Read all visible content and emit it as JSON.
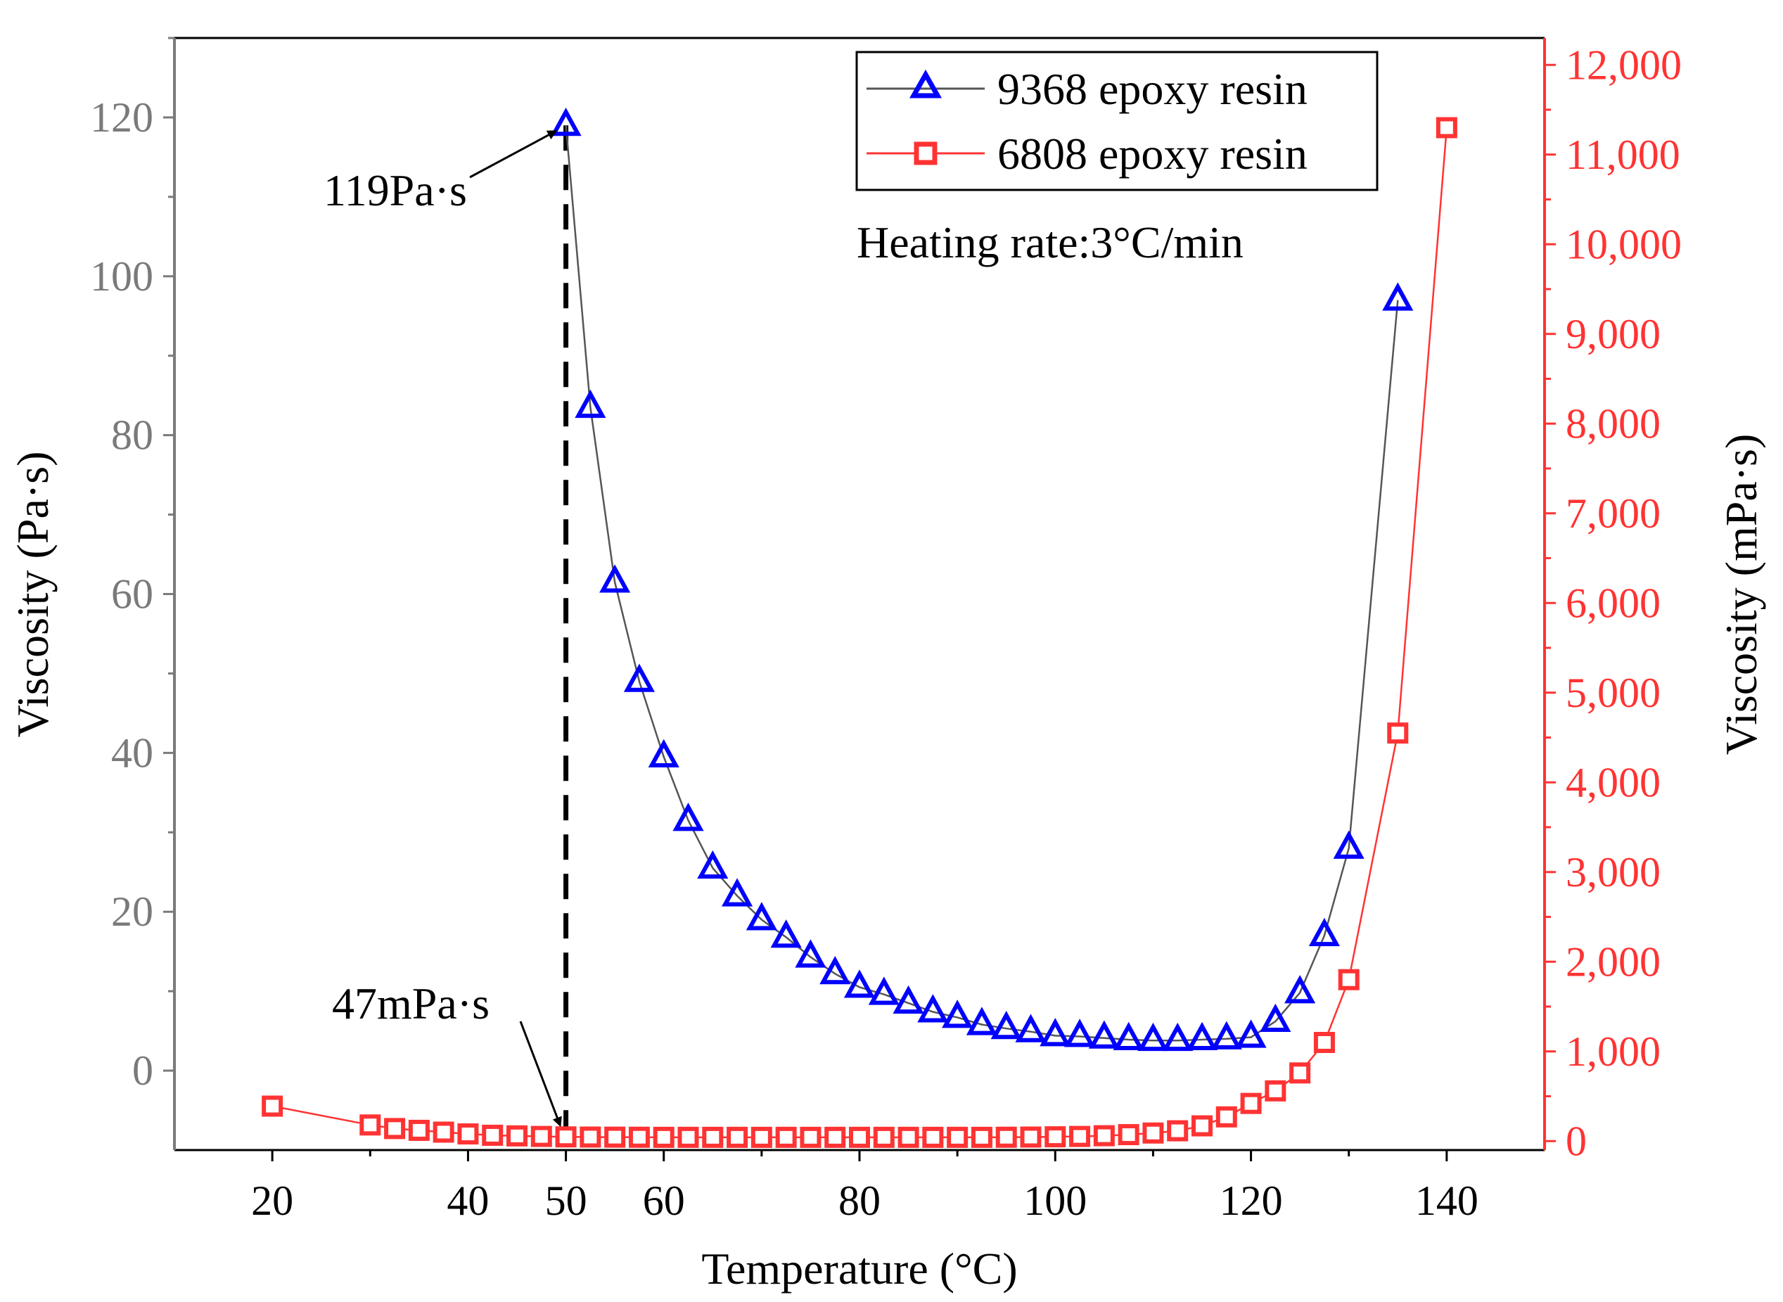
{
  "chart_data": {
    "type": "line",
    "title": "",
    "annotation_heating": "Heating rate:3°C/min",
    "xlabel": "Temperature (°C)",
    "ylabel_left": "Viscosity (Pa·s)",
    "ylabel_right": "Viscosity (mPa·s)",
    "xlim": [
      10,
      150
    ],
    "ylim_left": [
      -10,
      130
    ],
    "ylim_right": [
      -100,
      12300
    ],
    "x_ticks": [
      "20",
      "40",
      "50",
      "60",
      "80",
      "100",
      "120",
      "140"
    ],
    "x_tick_values": [
      20,
      40,
      50,
      60,
      80,
      100,
      120,
      140
    ],
    "left_ticks": [
      "0",
      "20",
      "40",
      "60",
      "80",
      "100",
      "120"
    ],
    "left_tick_values": [
      0,
      20,
      40,
      60,
      80,
      100,
      120
    ],
    "right_ticks": [
      "0",
      "1,000",
      "2,000",
      "3,000",
      "4,000",
      "5,000",
      "6,000",
      "7,000",
      "8,000",
      "9,000",
      "10,000",
      "11,000",
      "12,000"
    ],
    "right_tick_values": [
      0,
      1000,
      2000,
      3000,
      4000,
      5000,
      6000,
      7000,
      8000,
      9000,
      10000,
      11000,
      12000
    ],
    "legend_position": "top-right",
    "colors": {
      "series_9368": "#0000ff",
      "series_6808": "#ff3333",
      "line_9368": "#555555",
      "right_axis": "#ff3333",
      "left_ticks": "#7a7a7a"
    },
    "annotations": [
      {
        "text": "119Pa·s",
        "x": 50,
        "y_axis": "left",
        "y": 119
      },
      {
        "text": "47mPa·s",
        "x": 50,
        "y_axis": "right",
        "y": 47
      }
    ],
    "marker_line_x": 50,
    "series": [
      {
        "name": "9368 epoxy resin",
        "axis": "left",
        "marker": "triangle",
        "x": [
          50,
          52.5,
          55,
          57.5,
          60,
          62.5,
          65,
          67.5,
          70,
          72.5,
          75,
          77.5,
          80,
          82.5,
          85,
          87.5,
          90,
          92.5,
          95,
          97.5,
          100,
          102.5,
          105,
          107.5,
          110,
          112.5,
          115,
          117.5,
          120,
          122.5,
          125,
          127.5,
          130,
          135
        ],
        "values": [
          119,
          83.5,
          61.5,
          49,
          39.5,
          31.5,
          25.5,
          22,
          19,
          16.8,
          14.3,
          12.2,
          10.5,
          9.6,
          8.5,
          7.4,
          6.7,
          5.8,
          5.3,
          4.9,
          4.4,
          4.3,
          4.1,
          3.9,
          3.8,
          3.8,
          3.9,
          4,
          4.2,
          6.2,
          9.8,
          17,
          28,
          97
        ]
      },
      {
        "name": "6808 epoxy resin",
        "axis": "right",
        "marker": "square",
        "x": [
          20,
          30,
          32.5,
          35,
          37.5,
          40,
          42.5,
          45,
          47.5,
          50,
          52.5,
          55,
          57.5,
          60,
          62.5,
          65,
          67.5,
          70,
          72.5,
          75,
          77.5,
          80,
          82.5,
          85,
          87.5,
          90,
          92.5,
          95,
          97.5,
          100,
          102.5,
          105,
          107.5,
          110,
          112.5,
          115,
          117.5,
          120,
          122.5,
          125,
          127.5,
          130,
          135,
          140
        ],
        "values": [
          390,
          180,
          140,
          120,
          100,
          80,
          65,
          58,
          52,
          47,
          45,
          44,
          43,
          42,
          42,
          42,
          42,
          42,
          42,
          42,
          42,
          42,
          42,
          42,
          42,
          42,
          42,
          43,
          45,
          48,
          52,
          60,
          72,
          90,
          115,
          170,
          270,
          420,
          560,
          760,
          1100,
          1800,
          4550,
          11300
        ]
      }
    ]
  }
}
